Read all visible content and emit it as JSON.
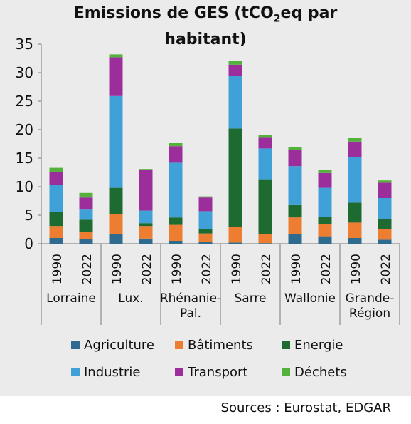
{
  "title": {
    "pre": "Emissions de GES (tCO",
    "sub": "2",
    "post": "eq par",
    "line2": "habitant)"
  },
  "source": "Sources : Eurostat, EDGAR",
  "chart_data": {
    "type": "bar",
    "stacked": true,
    "title": "Emissions de GES (tCO2eq par habitant)",
    "ylim": [
      0,
      35
    ],
    "yticks": [
      0,
      5,
      10,
      15,
      20,
      25,
      30,
      35
    ],
    "grid": false,
    "legend_placement": "bottom",
    "categories": [
      "1990",
      "2022",
      "1990",
      "2022",
      "1990",
      "2022",
      "1990",
      "2022",
      "1990",
      "2022",
      "1990",
      "2022"
    ],
    "groups": [
      {
        "label": "Lorraine",
        "span": 2
      },
      {
        "label": "Lux.",
        "span": 2
      },
      {
        "label": "Rhénanie-Pal.",
        "span": 2
      },
      {
        "label": "Sarre",
        "span": 2
      },
      {
        "label": "Wallonie",
        "span": 2
      },
      {
        "label": "Grande-Région",
        "span": 2
      }
    ],
    "series": [
      {
        "name": "Agriculture",
        "color": "#2e6b8f",
        "values": [
          1.0,
          0.8,
          1.7,
          0.9,
          0.5,
          0.3,
          0.2,
          0.1,
          1.7,
          1.3,
          1.0,
          0.7
        ]
      },
      {
        "name": "Bâtiments",
        "color": "#ed7d31",
        "values": [
          2.1,
          1.3,
          3.5,
          2.2,
          2.8,
          1.5,
          2.8,
          1.6,
          2.9,
          2.1,
          2.7,
          1.8
        ]
      },
      {
        "name": "Energie",
        "color": "#1e6b32",
        "values": [
          2.4,
          2.1,
          4.6,
          0.5,
          1.3,
          0.8,
          17.2,
          9.6,
          2.3,
          1.3,
          3.5,
          1.8
        ]
      },
      {
        "name": "Industrie",
        "color": "#3fa1d8",
        "values": [
          4.8,
          1.9,
          16.1,
          2.2,
          9.6,
          3.1,
          9.2,
          5.4,
          6.7,
          5.1,
          8.0,
          3.7
        ]
      },
      {
        "name": "Transport",
        "color": "#9c2e9c",
        "values": [
          2.2,
          2.0,
          6.8,
          7.2,
          2.9,
          2.4,
          2.0,
          2.0,
          2.8,
          2.6,
          2.7,
          2.7
        ]
      },
      {
        "name": "Déchets",
        "color": "#54b13c",
        "values": [
          0.8,
          0.8,
          0.5,
          0.1,
          0.6,
          0.2,
          0.6,
          0.3,
          0.6,
          0.5,
          0.6,
          0.4
        ]
      }
    ]
  }
}
